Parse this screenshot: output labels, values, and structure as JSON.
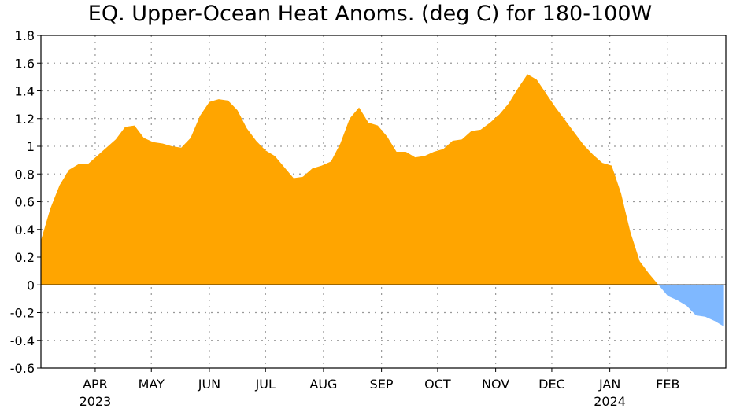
{
  "chart_data": {
    "type": "area",
    "title": "EQ. Upper-Ocean Heat Anoms. (deg C) for 180-100W",
    "xlabel": "",
    "ylabel": "",
    "ylim": [
      -0.6,
      1.8
    ],
    "yticks": [
      -0.6,
      -0.4,
      -0.2,
      0,
      0.2,
      0.4,
      0.6,
      0.8,
      1,
      1.2,
      1.4,
      1.6,
      1.8
    ],
    "ytick_labels": [
      "-0.6",
      "-0.4",
      "-0.2",
      "0",
      "0.2",
      "0.4",
      "0.6",
      "0.8",
      "1",
      "1.2",
      "1.4",
      "1.6",
      "1.8"
    ],
    "xlim": [
      "2023-03-03",
      "2024-03-03"
    ],
    "xticks": [
      {
        "date": "2023-04-01",
        "label": "APR",
        "year": "2023"
      },
      {
        "date": "2023-05-01",
        "label": "MAY",
        "year": ""
      },
      {
        "date": "2023-06-01",
        "label": "JUN",
        "year": ""
      },
      {
        "date": "2023-07-01",
        "label": "JUL",
        "year": ""
      },
      {
        "date": "2023-08-01",
        "label": "AUG",
        "year": ""
      },
      {
        "date": "2023-09-01",
        "label": "SEP",
        "year": ""
      },
      {
        "date": "2023-10-01",
        "label": "OCT",
        "year": ""
      },
      {
        "date": "2023-11-01",
        "label": "NOV",
        "year": ""
      },
      {
        "date": "2023-12-01",
        "label": "DEC",
        "year": ""
      },
      {
        "date": "2024-01-01",
        "label": "JAN",
        "year": "2024"
      },
      {
        "date": "2024-02-01",
        "label": "FEB",
        "year": ""
      }
    ],
    "grid": true,
    "positive_color": "#ffa500",
    "negative_color": "#7fb8ff",
    "x": [
      "2023-03-03",
      "2023-03-08",
      "2023-03-13",
      "2023-03-18",
      "2023-03-23",
      "2023-03-28",
      "2023-04-02",
      "2023-04-07",
      "2023-04-12",
      "2023-04-17",
      "2023-04-22",
      "2023-04-27",
      "2023-05-02",
      "2023-05-07",
      "2023-05-12",
      "2023-05-17",
      "2023-05-22",
      "2023-05-27",
      "2023-06-01",
      "2023-06-06",
      "2023-06-11",
      "2023-06-16",
      "2023-06-21",
      "2023-06-26",
      "2023-07-01",
      "2023-07-06",
      "2023-07-11",
      "2023-07-16",
      "2023-07-21",
      "2023-07-26",
      "2023-07-31",
      "2023-08-05",
      "2023-08-10",
      "2023-08-15",
      "2023-08-20",
      "2023-08-25",
      "2023-08-30",
      "2023-09-04",
      "2023-09-09",
      "2023-09-14",
      "2023-09-19",
      "2023-09-24",
      "2023-09-29",
      "2023-10-04",
      "2023-10-09",
      "2023-10-14",
      "2023-10-19",
      "2023-10-24",
      "2023-10-29",
      "2023-11-03",
      "2023-11-08",
      "2023-11-13",
      "2023-11-18",
      "2023-11-23",
      "2023-11-28",
      "2023-12-03",
      "2023-12-08",
      "2023-12-13",
      "2023-12-18",
      "2023-12-23",
      "2023-12-28",
      "2024-01-02",
      "2024-01-07",
      "2024-01-12",
      "2024-01-17",
      "2024-01-22",
      "2024-01-27",
      "2024-02-01",
      "2024-02-06",
      "2024-02-11",
      "2024-02-16",
      "2024-02-21",
      "2024-02-26",
      "2024-03-02"
    ],
    "values": [
      0.32,
      0.55,
      0.72,
      0.83,
      0.87,
      0.87,
      0.93,
      0.99,
      1.05,
      1.14,
      1.15,
      1.06,
      1.03,
      1.02,
      1.0,
      0.99,
      1.06,
      1.22,
      1.32,
      1.34,
      1.33,
      1.26,
      1.13,
      1.04,
      0.97,
      0.93,
      0.85,
      0.77,
      0.78,
      0.84,
      0.86,
      0.89,
      1.02,
      1.2,
      1.28,
      1.17,
      1.15,
      1.07,
      0.96,
      0.96,
      0.92,
      0.93,
      0.96,
      0.98,
      1.04,
      1.05,
      1.11,
      1.12,
      1.17,
      1.23,
      1.31,
      1.42,
      1.52,
      1.48,
      1.38,
      1.28,
      1.19,
      1.1,
      1.01,
      0.94,
      0.88,
      0.86,
      0.66,
      0.38,
      0.17,
      0.08,
      0.0,
      -0.08,
      -0.11,
      -0.15,
      -0.22,
      -0.23,
      -0.26,
      -0.3
    ]
  }
}
